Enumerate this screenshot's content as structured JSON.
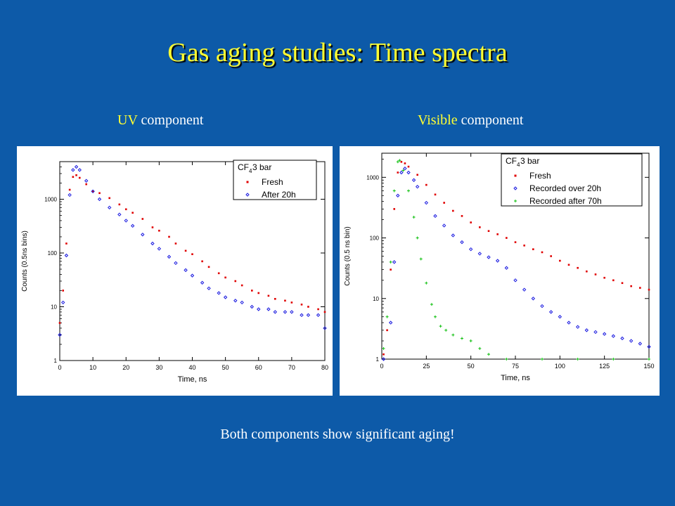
{
  "slide": {
    "title": "Gas aging studies: Time spectra",
    "footer": "Both components show significant aging!",
    "colors": {
      "background": "#0d5aa8",
      "title": "#ffff33",
      "highlight": "#ffff33",
      "text": "#ffffff"
    }
  },
  "captions": {
    "uv": {
      "highlight": "UV",
      "rest": " component"
    },
    "vis": {
      "highlight": "Visible",
      "rest": " component"
    }
  },
  "chart_data": [
    {
      "type": "scatter",
      "xlabel": "Time, ns",
      "ylabel": "Counts (0.5ns bins)",
      "xlim": [
        0,
        80
      ],
      "ylim": [
        1,
        5000
      ],
      "yscale": "log",
      "xticks": [
        "0",
        "10",
        "20",
        "30",
        "40",
        "50",
        "60",
        "70",
        "80"
      ],
      "yticks": [
        "1",
        "10",
        "100",
        "1000"
      ],
      "legend": {
        "position": "top-right",
        "title_main": "CF",
        "title_sub": "4",
        "title_rest": " 3 bar"
      },
      "series": [
        {
          "name": "Fresh",
          "color": "#e00000",
          "marker": "square",
          "points": [
            [
              0,
              5
            ],
            [
              1,
              20
            ],
            [
              2,
              150
            ],
            [
              3,
              1500
            ],
            [
              4,
              2600
            ],
            [
              5,
              2800
            ],
            [
              6,
              2500
            ],
            [
              8,
              1900
            ],
            [
              10,
              1400
            ],
            [
              12,
              1300
            ],
            [
              15,
              1050
            ],
            [
              18,
              800
            ],
            [
              20,
              650
            ],
            [
              22,
              560
            ],
            [
              25,
              430
            ],
            [
              28,
              300
            ],
            [
              30,
              260
            ],
            [
              33,
              200
            ],
            [
              35,
              150
            ],
            [
              38,
              110
            ],
            [
              40,
              95
            ],
            [
              43,
              70
            ],
            [
              45,
              55
            ],
            [
              48,
              42
            ],
            [
              50,
              35
            ],
            [
              53,
              30
            ],
            [
              55,
              25
            ],
            [
              58,
              20
            ],
            [
              60,
              18
            ],
            [
              63,
              16
            ],
            [
              65,
              14
            ],
            [
              68,
              13
            ],
            [
              70,
              12
            ],
            [
              73,
              11
            ],
            [
              75,
              10
            ],
            [
              78,
              9
            ],
            [
              80,
              8
            ]
          ]
        },
        {
          "name": "After 20h",
          "color": "#1a1ae0",
          "marker": "diamond",
          "points": [
            [
              0,
              3
            ],
            [
              1,
              12
            ],
            [
              2,
              90
            ],
            [
              3,
              1200
            ],
            [
              4,
              3500
            ],
            [
              5,
              4000
            ],
            [
              6,
              3500
            ],
            [
              8,
              2200
            ],
            [
              10,
              1400
            ],
            [
              12,
              1000
            ],
            [
              15,
              700
            ],
            [
              18,
              520
            ],
            [
              20,
              400
            ],
            [
              22,
              320
            ],
            [
              25,
              220
            ],
            [
              28,
              150
            ],
            [
              30,
              120
            ],
            [
              33,
              85
            ],
            [
              35,
              65
            ],
            [
              38,
              48
            ],
            [
              40,
              38
            ],
            [
              43,
              28
            ],
            [
              45,
              22
            ],
            [
              48,
              18
            ],
            [
              50,
              15
            ],
            [
              53,
              13
            ],
            [
              55,
              12
            ],
            [
              58,
              10
            ],
            [
              60,
              9
            ],
            [
              63,
              9
            ],
            [
              65,
              8
            ],
            [
              68,
              8
            ],
            [
              70,
              8
            ],
            [
              73,
              7
            ],
            [
              75,
              7
            ],
            [
              78,
              7
            ],
            [
              80,
              4
            ]
          ]
        }
      ]
    },
    {
      "type": "scatter",
      "xlabel": "Time, ns",
      "ylabel": "Counts (0.5 ns bin)",
      "xlim": [
        0,
        150
      ],
      "ylim": [
        1,
        2500
      ],
      "yscale": "log",
      "xticks": [
        "0",
        "25",
        "50",
        "75",
        "100",
        "125",
        "150"
      ],
      "yticks": [
        "1",
        "10",
        "100",
        "1000"
      ],
      "legend": {
        "position": "top-right",
        "title_main": "CF",
        "title_sub": "4",
        "title_rest": " 3 bar"
      },
      "series": [
        {
          "name": "Fresh",
          "color": "#e00000",
          "marker": "square",
          "points": [
            [
              1,
              1.2
            ],
            [
              3,
              3
            ],
            [
              5,
              30
            ],
            [
              7,
              300
            ],
            [
              9,
              1200
            ],
            [
              11,
              1800
            ],
            [
              13,
              1700
            ],
            [
              15,
              1500
            ],
            [
              20,
              1100
            ],
            [
              25,
              750
            ],
            [
              30,
              520
            ],
            [
              35,
              380
            ],
            [
              40,
              280
            ],
            [
              45,
              230
            ],
            [
              50,
              180
            ],
            [
              55,
              150
            ],
            [
              60,
              130
            ],
            [
              65,
              115
            ],
            [
              70,
              100
            ],
            [
              75,
              85
            ],
            [
              80,
              75
            ],
            [
              85,
              65
            ],
            [
              90,
              58
            ],
            [
              95,
              50
            ],
            [
              100,
              42
            ],
            [
              105,
              36
            ],
            [
              110,
              32
            ],
            [
              115,
              28
            ],
            [
              120,
              25
            ],
            [
              125,
              22
            ],
            [
              130,
              20
            ],
            [
              135,
              18
            ],
            [
              140,
              16
            ],
            [
              145,
              15
            ],
            [
              150,
              14
            ]
          ]
        },
        {
          "name": "Recorded over 20h",
          "color": "#1a1ae0",
          "marker": "diamond",
          "points": [
            [
              1,
              1
            ],
            [
              5,
              4
            ],
            [
              7,
              40
            ],
            [
              9,
              500
            ],
            [
              11,
              1200
            ],
            [
              13,
              1400
            ],
            [
              15,
              1200
            ],
            [
              18,
              900
            ],
            [
              20,
              700
            ],
            [
              25,
              380
            ],
            [
              30,
              230
            ],
            [
              35,
              160
            ],
            [
              40,
              110
            ],
            [
              45,
              85
            ],
            [
              50,
              65
            ],
            [
              55,
              55
            ],
            [
              60,
              48
            ],
            [
              65,
              42
            ],
            [
              70,
              32
            ],
            [
              75,
              20
            ],
            [
              80,
              14
            ],
            [
              85,
              10
            ],
            [
              90,
              7.5
            ],
            [
              95,
              6
            ],
            [
              100,
              5
            ],
            [
              105,
              4
            ],
            [
              110,
              3.4
            ],
            [
              115,
              3
            ],
            [
              120,
              2.8
            ],
            [
              125,
              2.6
            ],
            [
              130,
              2.4
            ],
            [
              135,
              2.2
            ],
            [
              140,
              2
            ],
            [
              145,
              1.8
            ],
            [
              150,
              1.6
            ]
          ]
        },
        {
          "name": "Recorded after 70h",
          "color": "#10c010",
          "marker": "plus",
          "points": [
            [
              1,
              1.5
            ],
            [
              3,
              5
            ],
            [
              5,
              40
            ],
            [
              7,
              600
            ],
            [
              9,
              1800
            ],
            [
              10,
              1900
            ],
            [
              12,
              1300
            ],
            [
              15,
              600
            ],
            [
              18,
              220
            ],
            [
              20,
              100
            ],
            [
              22,
              45
            ],
            [
              25,
              18
            ],
            [
              28,
              8
            ],
            [
              30,
              5
            ],
            [
              33,
              3.5
            ],
            [
              36,
              3
            ],
            [
              40,
              2.5
            ],
            [
              45,
              2.2
            ],
            [
              50,
              2
            ],
            [
              55,
              1.5
            ],
            [
              60,
              1.2
            ],
            [
              70,
              1
            ],
            [
              90,
              1
            ],
            [
              110,
              1
            ],
            [
              130,
              1
            ],
            [
              150,
              1
            ]
          ]
        }
      ]
    }
  ]
}
